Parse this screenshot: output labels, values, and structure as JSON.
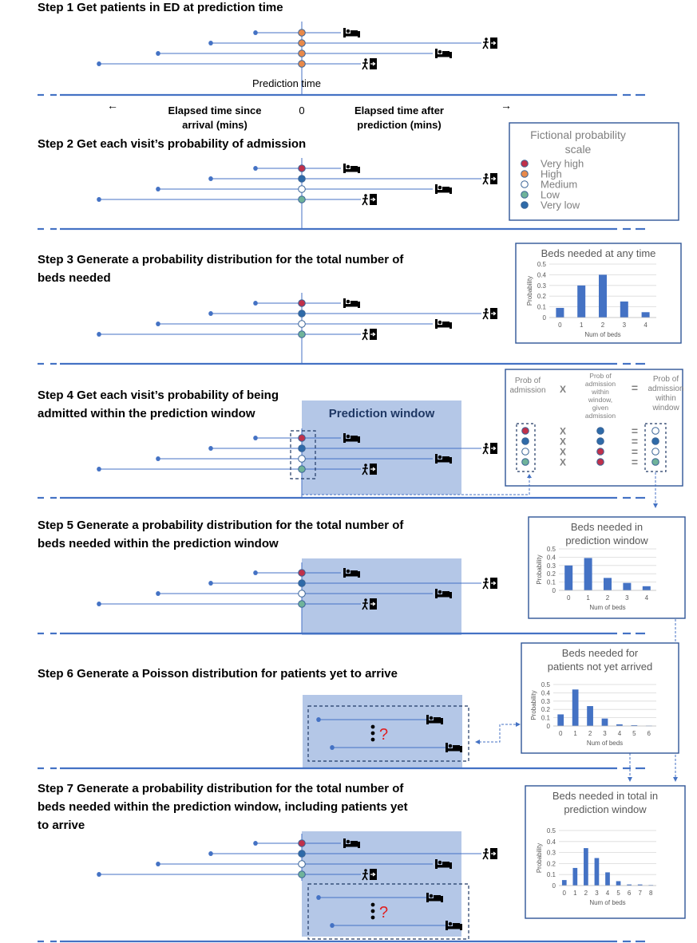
{
  "steps": [
    {
      "title_lines": [
        "Step 1 Get patients in ED at prediction time"
      ]
    },
    {
      "title_lines": [
        "Step 2 Get each visit’s probability of admission"
      ]
    },
    {
      "title_lines": [
        "Step 3 Generate a probability distribution for the total number of",
        "beds needed"
      ]
    },
    {
      "title_lines": [
        "Step 4 Get each visit’s probability of being",
        "admitted within the prediction window"
      ]
    },
    {
      "title_lines": [
        "Step 5 Generate a probability distribution for the total number of",
        "beds needed within the prediction window"
      ]
    },
    {
      "title_lines": [
        "Step 6 Generate a Poisson distribution for patients yet to arrive"
      ]
    },
    {
      "title_lines": [
        "Step 7 Generate a probability distribution for the total number of",
        "beds needed within the prediction window, including patients yet",
        "to arrive"
      ]
    }
  ],
  "timeline": {
    "prediction_time": "Prediction time",
    "elapsed_before": [
      "Elapsed time since",
      "arrival (mins)"
    ],
    "elapsed_after": [
      "Elapsed time after",
      "prediction (mins)"
    ],
    "zero": "0",
    "arrow_left": "←",
    "arrow_right": "→"
  },
  "legend": {
    "title_lines": [
      "Fictional probability",
      "scale"
    ],
    "items": [
      {
        "label": "Very high",
        "color": "#c0304a"
      },
      {
        "label": "High",
        "color": "#e8894a"
      },
      {
        "label": "Medium",
        "color": "#ffffff"
      },
      {
        "label": "Low",
        "color": "#6fb39a"
      },
      {
        "label": "Very low",
        "color": "#2e6aa8"
      }
    ]
  },
  "prediction_window_label": "Prediction window",
  "question_mark": "?",
  "formula": {
    "prob_admission": [
      "Prob of",
      "admission"
    ],
    "times": "X",
    "prob_within": [
      "Prob of",
      "admission",
      "within",
      "window,",
      "given",
      "admission"
    ],
    "equals": "=",
    "result": [
      "Prob of",
      "admission",
      "within",
      "window"
    ]
  },
  "colors": {
    "line": "#4472c4",
    "window": "#b4c7e7",
    "very_high": "#c0304a",
    "high": "#e8894a",
    "low": "#6fb39a",
    "very_low": "#2e6aa8"
  },
  "chart_data": [
    {
      "type": "bar",
      "title": "Beds needed at any time",
      "xlabel": "Num of beds",
      "ylabel": "Probability",
      "categories": [
        "0",
        "1",
        "2",
        "3",
        "4"
      ],
      "values": [
        0.09,
        0.3,
        0.4,
        0.15,
        0.05
      ],
      "ylim": [
        0,
        0.5
      ],
      "yticks": [
        "0",
        "0.1",
        "0.2",
        "0.3",
        "0.4",
        "0.5"
      ],
      "grid": true
    },
    {
      "type": "bar",
      "title": "Beds needed in prediction window",
      "xlabel": "Num of beds",
      "ylabel": "Probability",
      "categories": [
        "0",
        "1",
        "2",
        "3",
        "4"
      ],
      "values": [
        0.3,
        0.39,
        0.15,
        0.09,
        0.05
      ],
      "ylim": [
        0,
        0.5
      ],
      "yticks": [
        "0",
        "0.1",
        "0.2",
        "0.3",
        "0.4",
        "0.5"
      ],
      "grid": true
    },
    {
      "type": "bar",
      "title": "Beds needed for patients not yet arrived",
      "xlabel": "Num of beds",
      "ylabel": "Probability",
      "categories": [
        "0",
        "1",
        "2",
        "3",
        "4",
        "5",
        "6"
      ],
      "values": [
        0.14,
        0.44,
        0.24,
        0.09,
        0.02,
        0.01,
        0.005
      ],
      "ylim": [
        0,
        0.5
      ],
      "yticks": [
        "0",
        "0.1",
        "0.2",
        "0.3",
        "0.4",
        "0.5"
      ],
      "grid": true
    },
    {
      "type": "bar",
      "title": "Beds needed in total in prediction window",
      "xlabel": "Num of beds",
      "ylabel": "Probability",
      "categories": [
        "0",
        "1",
        "2",
        "3",
        "4",
        "5",
        "6",
        "7",
        "8"
      ],
      "values": [
        0.05,
        0.16,
        0.34,
        0.25,
        0.12,
        0.04,
        0.01,
        0.01,
        0.005
      ],
      "ylim": [
        0,
        0.5
      ],
      "yticks": [
        "0",
        "0.1",
        "0.2",
        "0.3",
        "0.4",
        "0.5"
      ],
      "grid": true
    }
  ]
}
